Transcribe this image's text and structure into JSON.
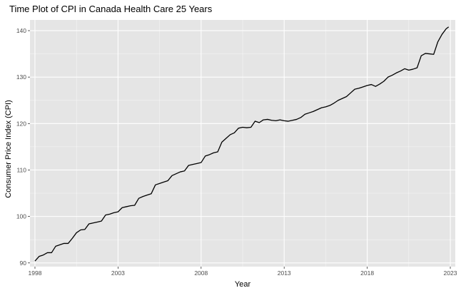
{
  "colors": {
    "panel_background": "#e5e5e5",
    "grid_major": "#ffffff",
    "line": "#000000",
    "tick_label": "#4d4d4d"
  },
  "chart_data": {
    "type": "line",
    "title": "Time Plot of CPI in Canada Health Care 25 Years",
    "xlabel": "Year",
    "ylabel": "Consumer Price Index (CPI)",
    "xlim": [
      1997.7,
      2023.3
    ],
    "ylim": [
      89.2,
      142.3
    ],
    "x_ticks": [
      1998,
      2003,
      2008,
      2013,
      2018,
      2023
    ],
    "x_tick_labels": [
      "1998",
      "2003",
      "2008",
      "2013",
      "2018",
      "2023"
    ],
    "y_ticks": [
      90,
      100,
      110,
      120,
      130,
      140
    ],
    "y_tick_labels": [
      "90",
      "100",
      "110",
      "120",
      "130",
      "140"
    ],
    "grid": true,
    "legend": "none",
    "series": [
      {
        "x": [
          1998.0,
          1998.25,
          1998.5,
          1998.75,
          1999.0,
          1999.25,
          1999.5,
          1999.75,
          2000.0,
          2000.25,
          2000.5,
          2000.75,
          2001.0,
          2001.25,
          2001.5,
          2001.75,
          2002.0,
          2002.25,
          2002.5,
          2002.75,
          2003.0,
          2003.25,
          2003.5,
          2003.75,
          2004.0,
          2004.25,
          2004.5,
          2004.75,
          2005.0,
          2005.25,
          2005.5,
          2005.75,
          2006.0,
          2006.25,
          2006.5,
          2006.75,
          2007.0,
          2007.25,
          2007.5,
          2007.75,
          2008.0,
          2008.25,
          2008.5,
          2008.75,
          2009.0,
          2009.25,
          2009.5,
          2009.75,
          2010.0,
          2010.25,
          2010.5,
          2010.75,
          2011.0,
          2011.25,
          2011.5,
          2011.75,
          2012.0,
          2012.25,
          2012.5,
          2012.75,
          2013.0,
          2013.25,
          2013.5,
          2013.75,
          2014.0,
          2014.25,
          2014.5,
          2014.75,
          2015.0,
          2015.25,
          2015.5,
          2015.75,
          2016.0,
          2016.25,
          2016.5,
          2016.75,
          2017.0,
          2017.25,
          2017.5,
          2017.75,
          2018.0,
          2018.25,
          2018.5,
          2018.75,
          2019.0,
          2019.25,
          2019.5,
          2019.75,
          2020.0,
          2020.25,
          2020.5,
          2020.75,
          2021.0,
          2021.25,
          2021.5,
          2021.75,
          2022.0,
          2022.25,
          2022.5,
          2022.75,
          2022.9
        ],
        "y": [
          90.4,
          91.4,
          91.7,
          92.2,
          92.2,
          93.6,
          93.9,
          94.2,
          94.2,
          95.3,
          96.5,
          97.1,
          97.2,
          98.4,
          98.6,
          98.8,
          99.0,
          100.3,
          100.5,
          100.8,
          101.0,
          101.9,
          102.1,
          102.3,
          102.4,
          103.9,
          104.3,
          104.6,
          104.9,
          106.8,
          107.1,
          107.4,
          107.7,
          108.8,
          109.2,
          109.6,
          109.8,
          111.0,
          111.2,
          111.4,
          111.6,
          113.0,
          113.3,
          113.7,
          113.9,
          116.0,
          116.8,
          117.6,
          118.0,
          119.0,
          119.2,
          119.1,
          119.2,
          120.5,
          120.2,
          120.8,
          120.9,
          120.7,
          120.6,
          120.8,
          120.6,
          120.5,
          120.7,
          120.9,
          121.3,
          122.0,
          122.3,
          122.6,
          123.0,
          123.4,
          123.6,
          123.9,
          124.4,
          125.0,
          125.4,
          125.8,
          126.6,
          127.4,
          127.6,
          127.9,
          128.2,
          128.4,
          128.0,
          128.5,
          129.1,
          130.0,
          130.4,
          130.9,
          131.3,
          131.8,
          131.5,
          131.7,
          132.0,
          134.6,
          135.1,
          135.0,
          134.9,
          137.6,
          139.2,
          140.4,
          140.8
        ]
      }
    ]
  }
}
